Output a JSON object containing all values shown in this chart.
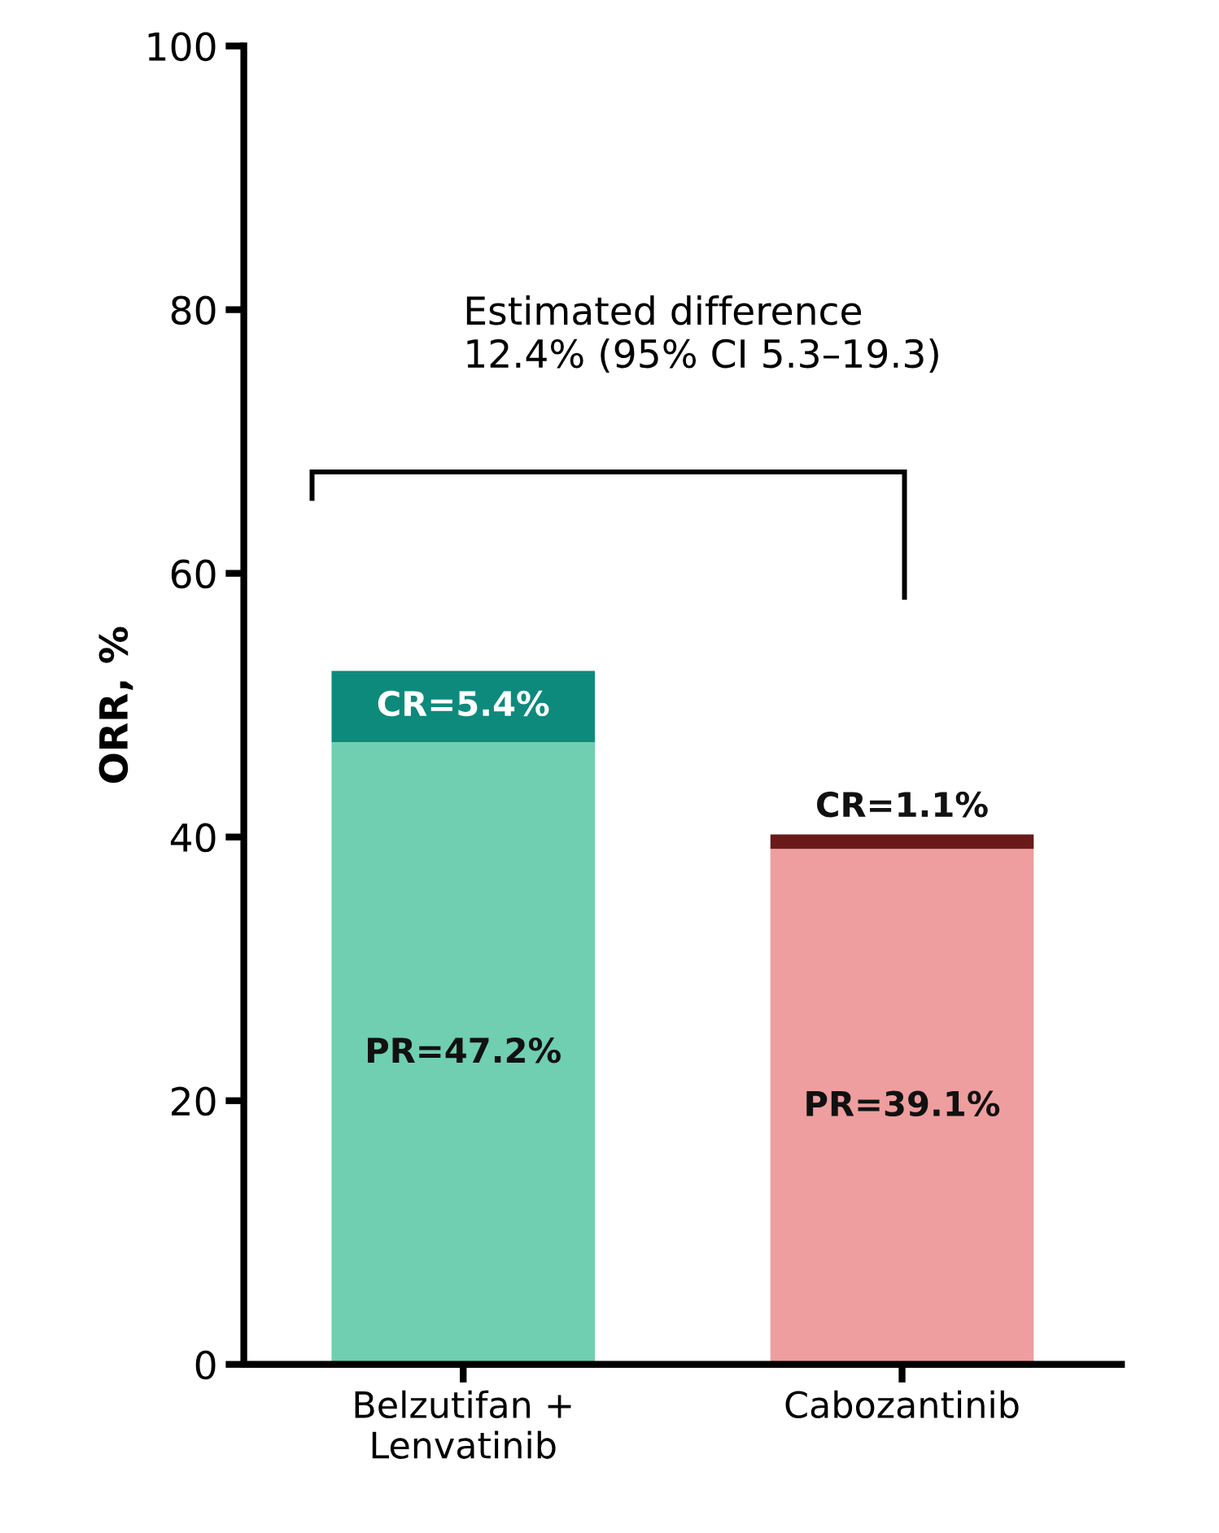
{
  "chart_data": {
    "type": "bar",
    "stacked": true,
    "ylabel": "ORR, %",
    "categories": [
      "Belzutifan +\nLenvatinib",
      "Cabozantinib"
    ],
    "series": [
      {
        "colors": [
          "#6fcfb0",
          "#ee9e9e"
        ],
        "values": [
          47.2,
          39.1
        ],
        "value_labels": [
          "PR=47.2%",
          "PR=39.1%"
        ]
      },
      {
        "colors": [
          "#0e8a7c",
          "#6b1a1a"
        ],
        "values": [
          5.4,
          1.1
        ],
        "value_labels": [
          "CR=5.4%",
          "CR=1.1%"
        ]
      }
    ],
    "ylim": [
      0,
      100
    ],
    "yticks": [
      0,
      20,
      40,
      60,
      80,
      100
    ],
    "grid": false,
    "legend": false,
    "annotations": [
      "Estimated difference\n12.4% (95% CI 5.3–19.3)"
    ]
  }
}
